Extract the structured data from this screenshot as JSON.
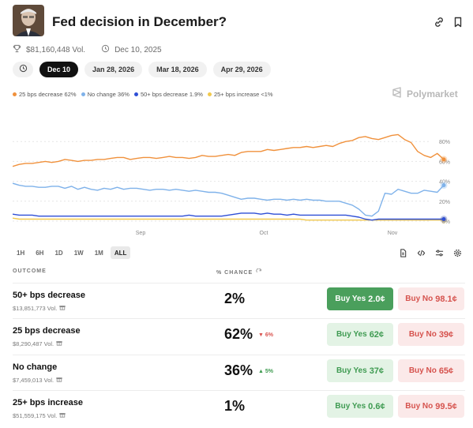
{
  "header": {
    "title": "Fed decision in December?",
    "volume": "$81,160,448 Vol.",
    "date": "Dec 10, 2025"
  },
  "date_tabs": [
    "Dec 10",
    "Jan 28, 2026",
    "Mar 18, 2026",
    "Apr 29, 2026"
  ],
  "legend": [
    {
      "label": "25 bps decrease 62%",
      "color": "#f0913c"
    },
    {
      "label": "No change 36%",
      "color": "#7fb2ea"
    },
    {
      "label": "50+ bps decrease 1.9%",
      "color": "#2f4fd6"
    },
    {
      "label": "25+ bps increase <1%",
      "color": "#f2c94c"
    }
  ],
  "brand": "Polymarket",
  "time_ranges": [
    "1H",
    "6H",
    "1D",
    "1W",
    "1M",
    "ALL"
  ],
  "table_headers": {
    "outcome": "OUTCOME",
    "chance": "% CHANCE"
  },
  "outcomes": [
    {
      "name": "50+ bps decrease",
      "volume": "$13,851,773 Vol.",
      "chance": "2%",
      "delta": "",
      "delta_dir": "",
      "yes_label": "Buy Yes",
      "yes_price": "2.0¢",
      "no_label": "Buy No",
      "no_price": "98.1¢"
    },
    {
      "name": "25 bps decrease",
      "volume": "$8,290,487 Vol.",
      "chance": "62%",
      "delta": "6%",
      "delta_dir": "down",
      "yes_label": "Buy Yes",
      "yes_price": "62¢",
      "no_label": "Buy No",
      "no_price": "39¢"
    },
    {
      "name": "No change",
      "volume": "$7,459,013 Vol.",
      "chance": "36%",
      "delta": "5%",
      "delta_dir": "up",
      "yes_label": "Buy Yes",
      "yes_price": "37¢",
      "no_label": "Buy No",
      "no_price": "65¢"
    },
    {
      "name": "25+ bps increase",
      "volume": "$51,559,175 Vol.",
      "chance": "1%",
      "delta": "",
      "delta_dir": "",
      "yes_label": "Buy Yes",
      "yes_price": "0.6¢",
      "no_label": "Buy No",
      "no_price": "99.5¢"
    }
  ],
  "chart_data": {
    "type": "line",
    "x_ticks": [
      "Sep",
      "Oct",
      "Nov"
    ],
    "y_ticks": [
      "80%",
      "60%",
      "40%",
      "20%",
      "0%"
    ],
    "ylim": [
      0,
      100
    ],
    "series": [
      {
        "name": "25 bps decrease",
        "color": "#f0913c",
        "values": [
          55,
          57,
          58,
          58,
          59,
          60,
          59,
          60,
          62,
          61,
          60,
          61,
          61,
          62,
          62,
          63,
          64,
          64,
          62,
          63,
          64,
          64,
          63,
          64,
          65,
          64,
          64,
          63,
          64,
          66,
          65,
          65,
          66,
          67,
          66,
          69,
          70,
          70,
          70,
          72,
          71,
          72,
          73,
          74,
          74,
          75,
          74,
          75,
          76,
          75,
          78,
          80,
          81,
          84,
          85,
          83,
          82,
          84,
          86,
          87,
          82,
          79,
          70,
          66,
          64,
          68,
          62
        ]
      },
      {
        "name": "No change",
        "color": "#7fb2ea",
        "values": [
          38,
          36,
          35,
          35,
          34,
          34,
          35,
          35,
          33,
          35,
          32,
          34,
          32,
          31,
          33,
          32,
          34,
          32,
          33,
          33,
          32,
          31,
          32,
          32,
          31,
          32,
          31,
          30,
          31,
          30,
          29,
          29,
          28,
          26,
          24,
          22,
          23,
          23,
          22,
          21,
          22,
          22,
          21,
          22,
          21,
          22,
          21,
          21,
          20,
          20,
          20,
          18,
          16,
          12,
          6,
          5,
          10,
          28,
          27,
          32,
          30,
          28,
          28,
          31,
          30,
          29,
          36
        ]
      },
      {
        "name": "50+ bps decrease",
        "color": "#2f4fd6",
        "values": [
          7,
          6,
          6,
          6,
          5,
          5,
          5,
          5,
          5,
          5,
          5,
          5,
          5,
          5,
          5,
          5,
          5,
          5,
          5,
          5,
          5,
          5,
          5,
          5,
          5,
          5,
          5,
          6,
          5,
          5,
          5,
          5,
          5,
          6,
          7,
          8,
          8,
          8,
          7,
          8,
          7,
          7,
          6,
          7,
          6,
          6,
          6,
          6,
          6,
          6,
          6,
          6,
          5,
          4,
          2,
          1,
          2,
          2,
          2,
          2,
          2,
          2,
          2,
          2,
          2,
          2,
          2
        ]
      },
      {
        "name": "25+ bps increase",
        "color": "#f2c94c",
        "values": [
          3,
          2,
          2,
          2,
          2,
          2,
          2,
          2,
          2,
          2,
          2,
          2,
          2,
          2,
          2,
          2,
          2,
          2,
          2,
          2,
          2,
          2,
          2,
          2,
          2,
          2,
          2,
          2,
          2,
          2,
          2,
          2,
          2,
          2,
          2,
          2,
          2,
          2,
          2,
          2,
          2,
          2,
          2,
          2,
          2,
          1,
          1,
          1,
          1,
          1,
          1,
          1,
          1,
          1,
          1,
          1,
          1,
          1,
          1,
          1,
          1,
          1,
          1,
          1,
          1,
          1,
          1
        ]
      }
    ]
  }
}
